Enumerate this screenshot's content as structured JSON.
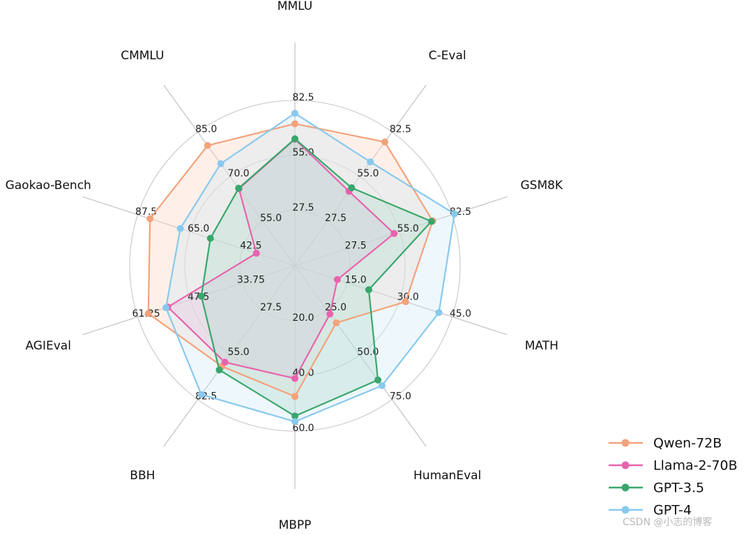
{
  "chart_data": {
    "type": "radar",
    "axes": [
      {
        "name": "MMLU",
        "max": 90,
        "ticks": [
          "27.5",
          "55.0",
          "82.5"
        ]
      },
      {
        "name": "C-Eval",
        "max": 90,
        "ticks": [
          "27.5",
          "55.0",
          "82.5"
        ]
      },
      {
        "name": "GSM8K",
        "max": 90,
        "ticks": [
          "27.5",
          "55.0",
          "82.5"
        ]
      },
      {
        "name": "MATH",
        "max": 50,
        "ticks": [
          "15.0",
          "30.0",
          "45.0"
        ]
      },
      {
        "name": "HumanEval",
        "max": 83,
        "ticks": [
          "25.0",
          "50.0",
          "75.0"
        ]
      },
      {
        "name": "MBPP",
        "max": 66,
        "ticks": [
          "20.0",
          "40.0",
          "60.0"
        ]
      },
      {
        "name": "BBH",
        "max": 90,
        "ticks": [
          "27.5",
          "55.0",
          "82.5"
        ]
      },
      {
        "name": "AGIEval",
        "max": 67,
        "ticks": [
          "33.75",
          "47.5",
          "61.25"
        ]
      },
      {
        "name": "Gaokao-Bench",
        "max": 95,
        "ticks": [
          "42.5",
          "65.0",
          "87.5"
        ]
      },
      {
        "name": "CMMLU",
        "max": 93,
        "ticks": [
          "55.0",
          "70.0",
          "85.0"
        ]
      }
    ],
    "series": [
      {
        "name": "Qwen-72B",
        "color": "#f4a27b",
        "fill": "#fbd5bf",
        "values": [
          77.3,
          83.3,
          78.9,
          35.2,
          35.4,
          52.2,
          67.7,
          62.5,
          87.6,
          83.6
        ]
      },
      {
        "name": "Llama-2-70B",
        "color": "#e863ad",
        "fill": "#f2b1d3",
        "values": [
          68.9,
          50.1,
          56.8,
          13.5,
          29.9,
          45.0,
          64.9,
          54.2,
          23.3,
          53.6
        ]
      },
      {
        "name": "GPT-3.5",
        "color": "#3aa66c",
        "fill": "#9fd4b4",
        "values": [
          69.1,
          52.5,
          78.2,
          23.5,
          70.9,
          60.0,
          70.1,
          39.9,
          51.1,
          53.9
        ]
      },
      {
        "name": "GPT-4",
        "color": "#88c9ee",
        "fill": "#cfe8f6",
        "values": [
          83.0,
          69.9,
          91.4,
          45.8,
          74.4,
          62.2,
          86.7,
          55.0,
          69.3,
          71.0
        ]
      }
    ],
    "grid": true,
    "legend_position": "bottom-right"
  },
  "watermark": "CSDN @小志的博客"
}
